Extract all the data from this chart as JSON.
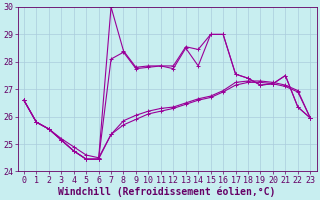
{
  "xlabel": "Windchill (Refroidissement éolien,°C)",
  "bg_color": "#c8eef0",
  "line_color": "#990099",
  "grid_color": "#aaccdd",
  "xlim": [
    -0.5,
    23.5
  ],
  "ylim": [
    24,
    30
  ],
  "xticks": [
    0,
    1,
    2,
    3,
    4,
    5,
    6,
    7,
    8,
    9,
    10,
    11,
    12,
    13,
    14,
    15,
    16,
    17,
    18,
    19,
    20,
    21,
    22,
    23
  ],
  "yticks": [
    24,
    25,
    26,
    27,
    28,
    29,
    30
  ],
  "series1_x": [
    0,
    1,
    2,
    3,
    4,
    5,
    6,
    7,
    8,
    9,
    10,
    11,
    12,
    13,
    14,
    15,
    16,
    17,
    18,
    19,
    20,
    21,
    22,
    23
  ],
  "series1_y": [
    26.6,
    25.8,
    25.55,
    25.15,
    24.75,
    24.45,
    24.45,
    30.0,
    28.4,
    27.8,
    27.85,
    27.85,
    27.85,
    28.55,
    28.45,
    29.0,
    29.0,
    27.55,
    27.4,
    27.15,
    27.2,
    27.5,
    26.35,
    25.95
  ],
  "series2_x": [
    0,
    1,
    2,
    3,
    4,
    5,
    6,
    7,
    8,
    9,
    10,
    11,
    12,
    13,
    14,
    15,
    16,
    17,
    18,
    19,
    20,
    21,
    22,
    23
  ],
  "series2_y": [
    26.6,
    25.8,
    25.55,
    25.15,
    24.75,
    24.45,
    24.45,
    28.1,
    28.35,
    27.75,
    27.8,
    27.85,
    27.75,
    28.5,
    27.85,
    29.0,
    29.0,
    27.55,
    27.4,
    27.15,
    27.2,
    27.5,
    26.35,
    25.95
  ],
  "series3_x": [
    0,
    1,
    2,
    3,
    4,
    5,
    6,
    7,
    8,
    9,
    10,
    11,
    12,
    13,
    14,
    15,
    16,
    17,
    18,
    19,
    20,
    21,
    22,
    23
  ],
  "series3_y": [
    26.6,
    25.8,
    25.55,
    25.15,
    24.75,
    24.45,
    24.45,
    25.35,
    25.85,
    26.05,
    26.2,
    26.3,
    26.35,
    26.5,
    26.65,
    26.75,
    26.95,
    27.25,
    27.3,
    27.3,
    27.25,
    27.15,
    26.95,
    25.95
  ],
  "series4_x": [
    0,
    1,
    2,
    3,
    4,
    5,
    6,
    7,
    8,
    9,
    10,
    11,
    12,
    13,
    14,
    15,
    16,
    17,
    18,
    19,
    20,
    21,
    22,
    23
  ],
  "series4_y": [
    26.6,
    25.8,
    25.55,
    25.2,
    24.9,
    24.6,
    24.5,
    25.35,
    25.7,
    25.9,
    26.1,
    26.2,
    26.3,
    26.45,
    26.6,
    26.7,
    26.9,
    27.15,
    27.25,
    27.25,
    27.2,
    27.1,
    26.9,
    25.95
  ],
  "font_color": "#660066",
  "tick_fontsize": 6.0,
  "label_fontsize": 7.0
}
